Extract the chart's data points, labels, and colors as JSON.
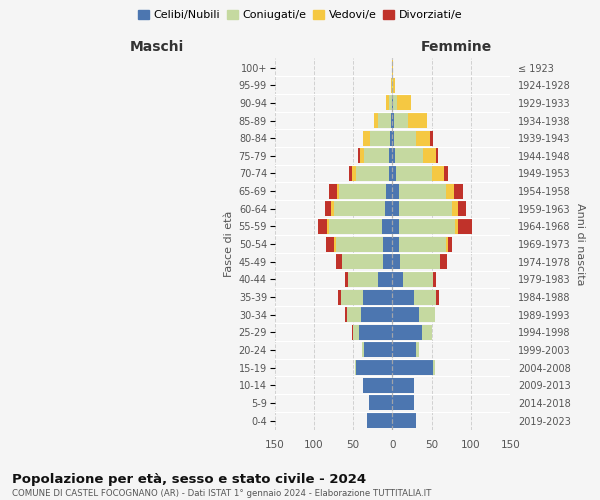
{
  "age_groups": [
    "0-4",
    "5-9",
    "10-14",
    "15-19",
    "20-24",
    "25-29",
    "30-34",
    "35-39",
    "40-44",
    "45-49",
    "50-54",
    "55-59",
    "60-64",
    "65-69",
    "70-74",
    "75-79",
    "80-84",
    "85-89",
    "90-94",
    "95-99",
    "100+"
  ],
  "birth_years": [
    "2019-2023",
    "2014-2018",
    "2009-2013",
    "2004-2008",
    "1999-2003",
    "1994-1998",
    "1989-1993",
    "1984-1988",
    "1979-1983",
    "1974-1978",
    "1969-1973",
    "1964-1968",
    "1959-1963",
    "1954-1958",
    "1949-1953",
    "1944-1948",
    "1939-1943",
    "1934-1938",
    "1929-1933",
    "1924-1928",
    "≤ 1923"
  ],
  "colors": {
    "celibi": "#4c76b0",
    "coniugati": "#c5d9a0",
    "vedovi": "#f5c842",
    "divorziati": "#c0322a"
  },
  "maschi": {
    "celibi": [
      32,
      30,
      38,
      46,
      36,
      42,
      40,
      38,
      18,
      12,
      12,
      13,
      10,
      8,
      5,
      4,
      3,
      2,
      1,
      0,
      0
    ],
    "coniugati": [
      0,
      0,
      0,
      2,
      3,
      8,
      18,
      28,
      38,
      52,
      60,
      68,
      65,
      60,
      42,
      32,
      26,
      16,
      3,
      1,
      0
    ],
    "vedovi": [
      0,
      0,
      0,
      0,
      0,
      0,
      0,
      0,
      0,
      0,
      2,
      2,
      3,
      3,
      5,
      5,
      8,
      5,
      4,
      1,
      0
    ],
    "divorziati": [
      0,
      0,
      0,
      0,
      0,
      1,
      2,
      3,
      5,
      8,
      10,
      12,
      8,
      10,
      3,
      3,
      0,
      0,
      0,
      0,
      0
    ]
  },
  "femmine": {
    "celibi": [
      30,
      28,
      28,
      52,
      30,
      38,
      34,
      28,
      14,
      10,
      8,
      8,
      8,
      8,
      5,
      3,
      2,
      2,
      1,
      0,
      0
    ],
    "coniugati": [
      0,
      0,
      0,
      2,
      4,
      12,
      20,
      28,
      38,
      50,
      60,
      72,
      68,
      60,
      45,
      36,
      28,
      18,
      5,
      1,
      0
    ],
    "vedovi": [
      0,
      0,
      0,
      0,
      0,
      0,
      0,
      0,
      0,
      0,
      3,
      3,
      8,
      10,
      16,
      16,
      18,
      24,
      18,
      2,
      1
    ],
    "divorziati": [
      0,
      0,
      0,
      0,
      0,
      0,
      0,
      3,
      3,
      10,
      5,
      18,
      10,
      12,
      5,
      3,
      3,
      0,
      0,
      0,
      0
    ]
  },
  "title": "Popolazione per età, sesso e stato civile - 2024",
  "subtitle": "COMUNE DI CASTEL FOCOGNANO (AR) - Dati ISTAT 1° gennaio 2024 - Elaborazione TUTTITALIA.IT",
  "xlabel_left": "Maschi",
  "xlabel_right": "Femmine",
  "ylabel_left": "Fasce di età",
  "ylabel_right": "Anni di nascita",
  "xlim": 150,
  "legend_labels": [
    "Celibi/Nubili",
    "Coniugati/e",
    "Vedovi/e",
    "Divorziati/e"
  ],
  "background_color": "#f5f5f5",
  "grid_color": "#cccccc",
  "bar_height": 0.85
}
